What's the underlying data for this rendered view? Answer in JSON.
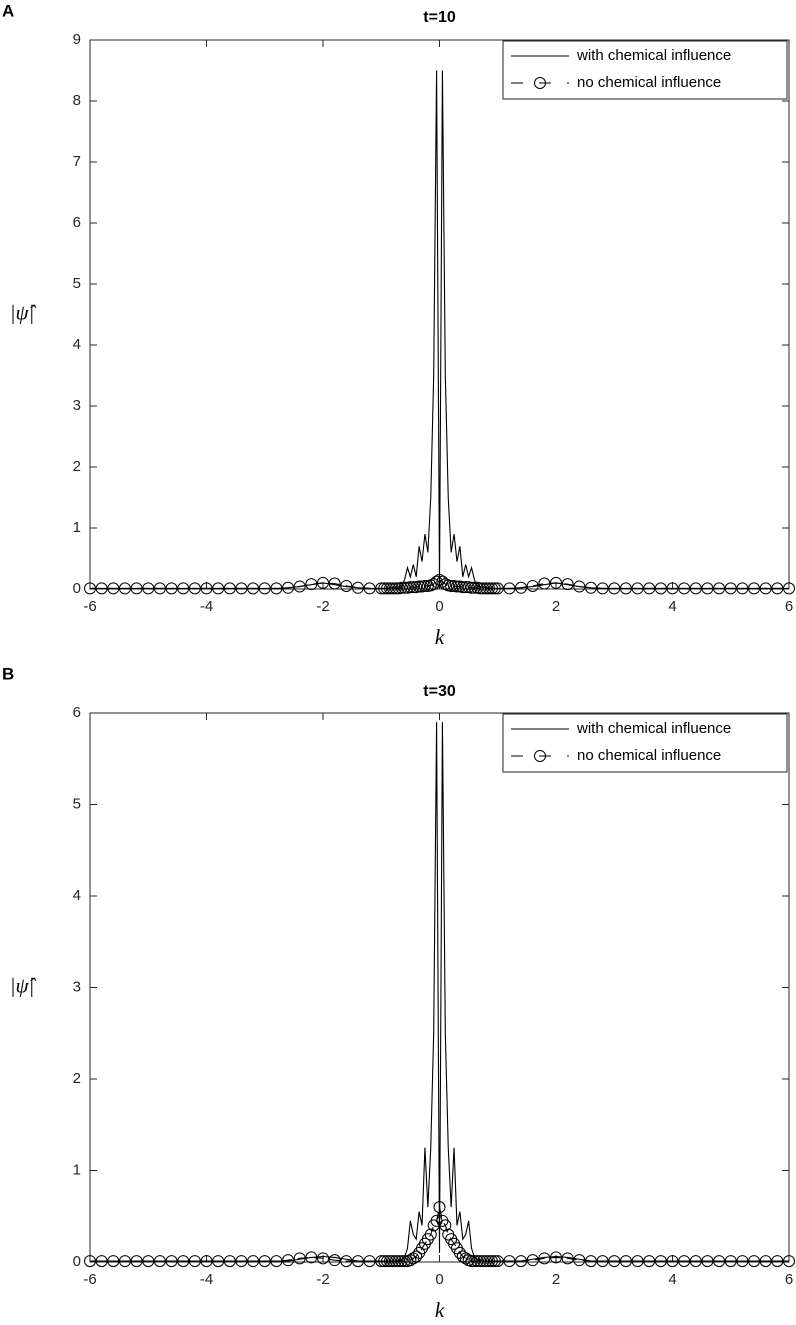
{
  "chart_data": [
    {
      "type": "line",
      "panel_label": "A",
      "title": "t=10",
      "x_label": "k",
      "y_label": "|ψ̂|",
      "x": [
        -6,
        -5.8,
        -5.6,
        -5.4,
        -5.2,
        -5,
        -4.8,
        -4.6,
        -4.4,
        -4.2,
        -4,
        -3.8,
        -3.6,
        -3.4,
        -3.2,
        -3,
        -2.8,
        -2.6,
        -2.4,
        -2.2,
        -2,
        -1.8,
        -1.6,
        -1.4,
        -1.2,
        -1,
        -0.95,
        -0.9,
        -0.85,
        -0.8,
        -0.75,
        -0.7,
        -0.65,
        -0.6,
        -0.55,
        -0.5,
        -0.45,
        -0.4,
        -0.35,
        -0.3,
        -0.25,
        -0.2,
        -0.15,
        -0.1,
        -0.05,
        0,
        0.05,
        0.1,
        0.15,
        0.2,
        0.25,
        0.3,
        0.35,
        0.4,
        0.45,
        0.5,
        0.55,
        0.6,
        0.65,
        0.7,
        0.75,
        0.8,
        0.85,
        0.9,
        0.95,
        1,
        1.2,
        1.4,
        1.6,
        1.8,
        2,
        2.2,
        2.4,
        2.6,
        2.8,
        3,
        3.2,
        3.4,
        3.6,
        3.8,
        4,
        4.2,
        4.4,
        4.6,
        4.8,
        5,
        5.2,
        5.4,
        5.6,
        5.8,
        6
      ],
      "series": [
        {
          "name": "with chemical influence",
          "color": "#000000",
          "line_style": "solid",
          "marker": "none",
          "values": [
            0.01,
            0.01,
            0.01,
            0.01,
            0.01,
            0.01,
            0.01,
            0.01,
            0.01,
            0.01,
            0.01,
            0.01,
            0.01,
            0.01,
            0.01,
            0.01,
            0.01,
            0.02,
            0.04,
            0.07,
            0.1,
            0.07,
            0.04,
            0.02,
            0.01,
            0.01,
            0.01,
            0.01,
            0.02,
            0.02,
            0.03,
            0.03,
            0.05,
            0.15,
            0.35,
            0.2,
            0.4,
            0.2,
            0.7,
            0.45,
            0.9,
            0.6,
            1.5,
            3.5,
            8.5,
            0.1,
            8.5,
            3.5,
            1.5,
            0.6,
            0.9,
            0.45,
            0.7,
            0.2,
            0.4,
            0.2,
            0.35,
            0.15,
            0.05,
            0.03,
            0.03,
            0.02,
            0.02,
            0.01,
            0.01,
            0.01,
            0.01,
            0.02,
            0.04,
            0.07,
            0.1,
            0.07,
            0.04,
            0.02,
            0.01,
            0.01,
            0.01,
            0.01,
            0.01,
            0.01,
            0.01,
            0.01,
            0.01,
            0.01,
            0.01,
            0.01,
            0.01,
            0.01,
            0.01,
            0.01,
            0.01
          ]
        },
        {
          "name": "no chemical influence",
          "color": "#000000",
          "line_style": "dashed",
          "marker": "circle",
          "values": [
            0.01,
            0.01,
            0.01,
            0.01,
            0.01,
            0.01,
            0.01,
            0.01,
            0.01,
            0.01,
            0.01,
            0.01,
            0.01,
            0.01,
            0.01,
            0.01,
            0.01,
            0.02,
            0.04,
            0.08,
            0.1,
            0.09,
            0.05,
            0.02,
            0.01,
            0.01,
            0.01,
            0.01,
            0.01,
            0.01,
            0.01,
            0.01,
            0.02,
            0.02,
            0.02,
            0.03,
            0.03,
            0.03,
            0.04,
            0.04,
            0.05,
            0.05,
            0.06,
            0.08,
            0.12,
            0.15,
            0.12,
            0.08,
            0.06,
            0.05,
            0.05,
            0.04,
            0.04,
            0.03,
            0.03,
            0.03,
            0.02,
            0.02,
            0.02,
            0.01,
            0.01,
            0.01,
            0.01,
            0.01,
            0.01,
            0.01,
            0.01,
            0.02,
            0.05,
            0.09,
            0.1,
            0.08,
            0.04,
            0.02,
            0.01,
            0.01,
            0.01,
            0.01,
            0.01,
            0.01,
            0.01,
            0.01,
            0.01,
            0.01,
            0.01,
            0.01,
            0.01,
            0.01,
            0.01,
            0.01,
            0.01
          ]
        }
      ],
      "xlim": [
        -6,
        6
      ],
      "xticks": [
        -6,
        -4,
        -2,
        0,
        2,
        4,
        6
      ],
      "ylim": [
        0,
        9
      ],
      "yticks": [
        0,
        1,
        2,
        3,
        4,
        5,
        6,
        7,
        8,
        9
      ],
      "grid": false,
      "legend_position": "upper right"
    },
    {
      "type": "line",
      "panel_label": "B",
      "title": "t=30",
      "x_label": "k",
      "y_label": "|ψ̂|",
      "x": [
        -6,
        -5.8,
        -5.6,
        -5.4,
        -5.2,
        -5,
        -4.8,
        -4.6,
        -4.4,
        -4.2,
        -4,
        -3.8,
        -3.6,
        -3.4,
        -3.2,
        -3,
        -2.8,
        -2.6,
        -2.4,
        -2.2,
        -2,
        -1.8,
        -1.6,
        -1.4,
        -1.2,
        -1,
        -0.95,
        -0.9,
        -0.85,
        -0.8,
        -0.75,
        -0.7,
        -0.65,
        -0.6,
        -0.55,
        -0.5,
        -0.45,
        -0.4,
        -0.35,
        -0.3,
        -0.25,
        -0.2,
        -0.15,
        -0.1,
        -0.05,
        0,
        0.05,
        0.1,
        0.15,
        0.2,
        0.25,
        0.3,
        0.35,
        0.4,
        0.45,
        0.5,
        0.55,
        0.6,
        0.65,
        0.7,
        0.75,
        0.8,
        0.85,
        0.9,
        0.95,
        1,
        1.2,
        1.4,
        1.6,
        1.8,
        2,
        2.2,
        2.4,
        2.6,
        2.8,
        3,
        3.2,
        3.4,
        3.6,
        3.8,
        4,
        4.2,
        4.4,
        4.6,
        4.8,
        5,
        5.2,
        5.4,
        5.6,
        5.8,
        6
      ],
      "series": [
        {
          "name": "with chemical influence",
          "color": "#000000",
          "line_style": "solid",
          "marker": "none",
          "values": [
            0.01,
            0.01,
            0.01,
            0.01,
            0.01,
            0.01,
            0.01,
            0.01,
            0.01,
            0.01,
            0.01,
            0.01,
            0.01,
            0.01,
            0.01,
            0.01,
            0.01,
            0.01,
            0.03,
            0.05,
            0.06,
            0.05,
            0.03,
            0.01,
            0.01,
            0.01,
            0.01,
            0.01,
            0.01,
            0.01,
            0.01,
            0.02,
            0.03,
            0.05,
            0.15,
            0.45,
            0.3,
            0.25,
            0.55,
            0.4,
            1.25,
            0.6,
            1.25,
            2.5,
            5.9,
            0.1,
            5.9,
            2.5,
            1.25,
            0.6,
            1.25,
            0.4,
            0.55,
            0.25,
            0.3,
            0.45,
            0.15,
            0.05,
            0.03,
            0.02,
            0.01,
            0.01,
            0.01,
            0.01,
            0.01,
            0.01,
            0.01,
            0.01,
            0.03,
            0.05,
            0.06,
            0.05,
            0.03,
            0.01,
            0.01,
            0.01,
            0.01,
            0.01,
            0.01,
            0.01,
            0.01,
            0.01,
            0.01,
            0.01,
            0.01,
            0.01,
            0.01,
            0.01,
            0.01,
            0.01,
            0.01
          ]
        },
        {
          "name": "no chemical influence",
          "color": "#000000",
          "line_style": "dashed",
          "marker": "circle",
          "values": [
            0.01,
            0.01,
            0.01,
            0.01,
            0.01,
            0.01,
            0.01,
            0.01,
            0.01,
            0.01,
            0.01,
            0.01,
            0.01,
            0.01,
            0.01,
            0.01,
            0.01,
            0.02,
            0.04,
            0.05,
            0.04,
            0.02,
            0.01,
            0.01,
            0.01,
            0.01,
            0.01,
            0.01,
            0.01,
            0.01,
            0.01,
            0.01,
            0.01,
            0.01,
            0.01,
            0.02,
            0.04,
            0.06,
            0.1,
            0.15,
            0.2,
            0.25,
            0.3,
            0.4,
            0.45,
            0.6,
            0.45,
            0.4,
            0.3,
            0.25,
            0.2,
            0.15,
            0.1,
            0.06,
            0.04,
            0.02,
            0.01,
            0.01,
            0.01,
            0.01,
            0.01,
            0.01,
            0.01,
            0.01,
            0.01,
            0.01,
            0.01,
            0.01,
            0.02,
            0.04,
            0.05,
            0.04,
            0.02,
            0.01,
            0.01,
            0.01,
            0.01,
            0.01,
            0.01,
            0.01,
            0.01,
            0.01,
            0.01,
            0.01,
            0.01,
            0.01,
            0.01,
            0.01,
            0.01,
            0.01,
            0.01
          ]
        }
      ],
      "xlim": [
        -6,
        6
      ],
      "xticks": [
        -6,
        -4,
        -2,
        0,
        2,
        4,
        6
      ],
      "ylim": [
        0,
        6
      ],
      "yticks": [
        0,
        1,
        2,
        3,
        4,
        5,
        6
      ],
      "grid": false,
      "legend_position": "upper right"
    }
  ]
}
